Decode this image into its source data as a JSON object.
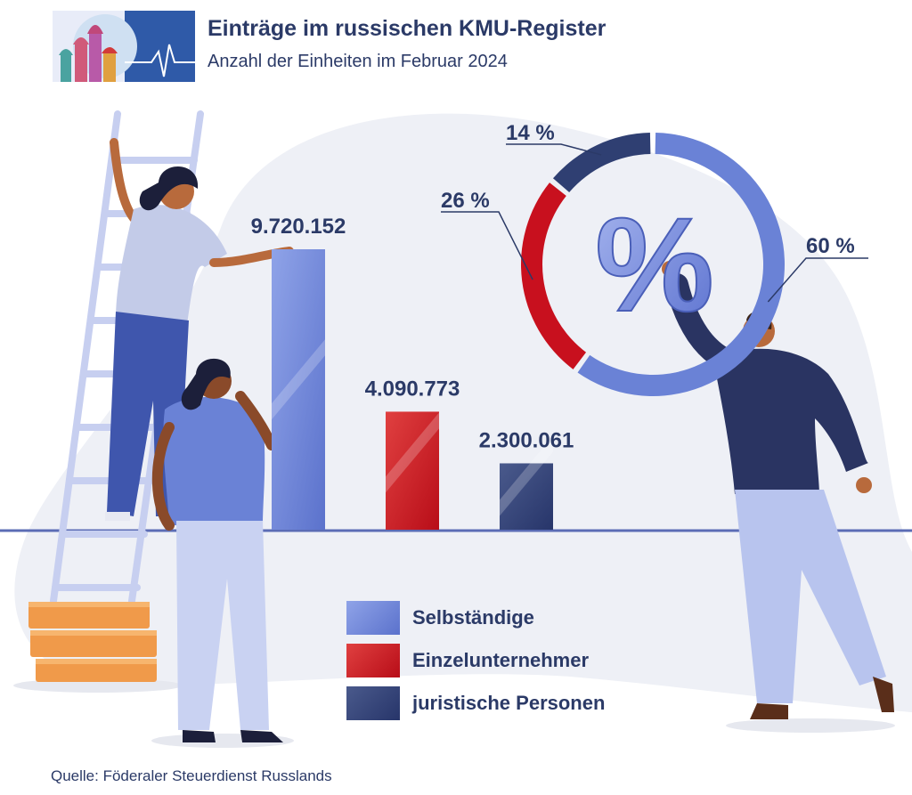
{
  "header": {
    "title": "Einträge im russischen KMU-Register",
    "subtitle": "Anzahl der Einheiten im Februar 2024"
  },
  "source": "Quelle: Föderaler Steuerdienst Russlands",
  "colors": {
    "selbstaendige": "#6a82d6",
    "einzelunternehmer": "#c8101e",
    "juristische": "#2f3f72",
    "text": "#2b3a67",
    "baseline": "#5b6cb5",
    "blob": "#eef0f6"
  },
  "chart_data": [
    {
      "type": "bar",
      "categories": [
        "Selbständige",
        "Einzelunternehmer",
        "juristische Personen"
      ],
      "values": [
        9720152,
        4090773,
        2300061
      ],
      "value_labels": [
        "9.720.152",
        "4.090.773",
        "2.300.061"
      ],
      "title": "Einträge im russischen KMU-Register",
      "ylim": [
        0,
        10000000
      ]
    },
    {
      "type": "pie",
      "style": "donut",
      "categories": [
        "Selbständige",
        "Einzelunternehmer",
        "juristische Personen"
      ],
      "values": [
        60,
        26,
        14
      ],
      "value_labels": [
        "60 %",
        "26 %",
        "14 %"
      ],
      "center_symbol": "%"
    }
  ],
  "legend": [
    {
      "label": "Selbständige"
    },
    {
      "label": "Einzelunternehmer"
    },
    {
      "label": "juristische Personen"
    }
  ]
}
